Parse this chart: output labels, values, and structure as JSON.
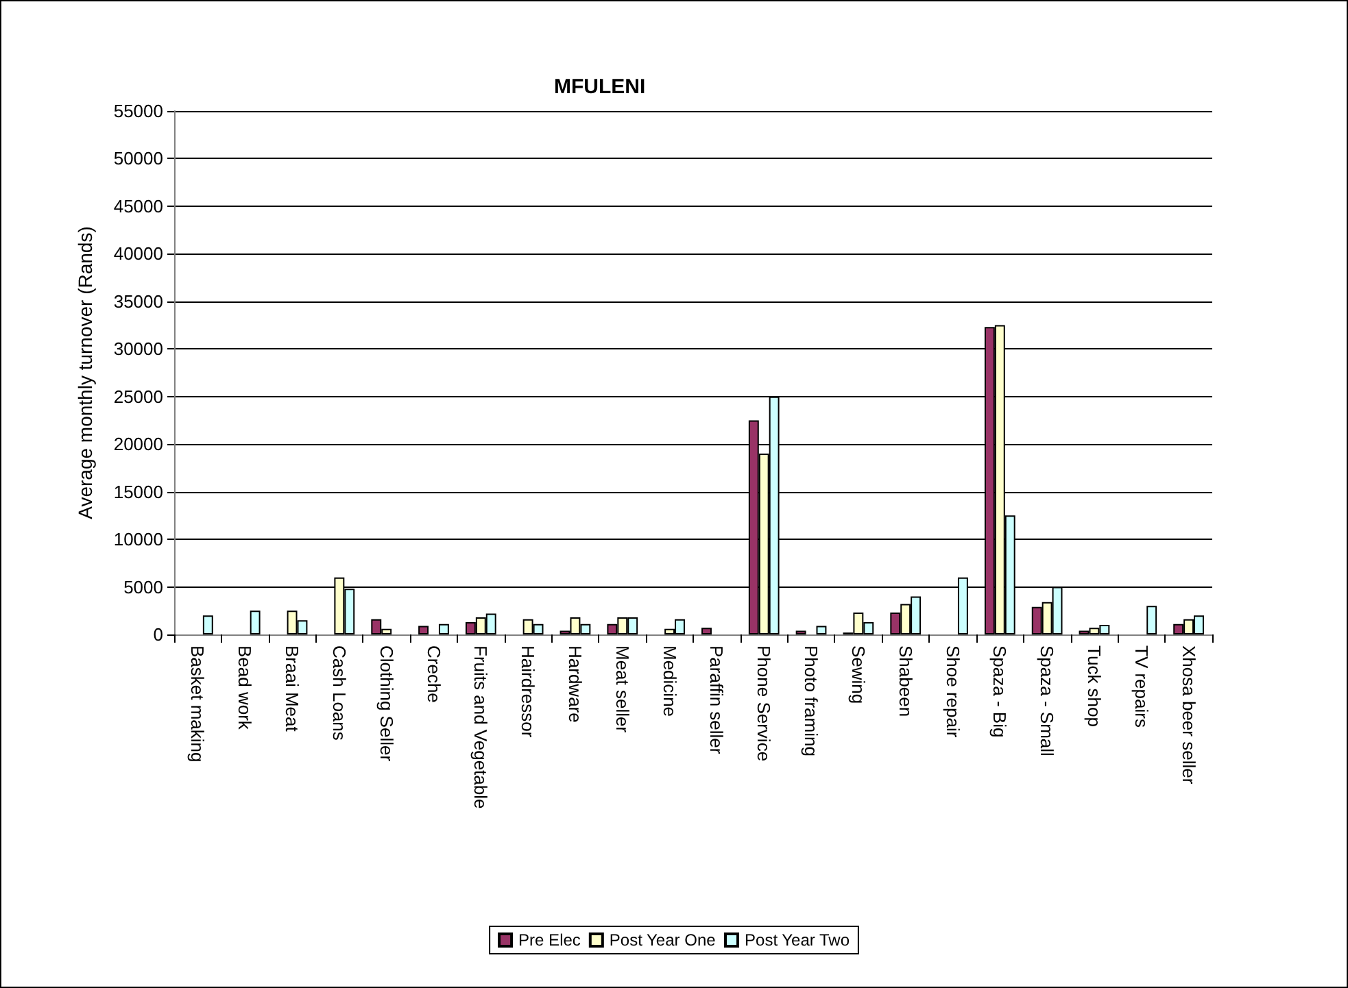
{
  "chart_data": {
    "type": "bar",
    "title": "MFULENI",
    "ylabel": "Average monthly turnover (Rands)",
    "categories": [
      "Basket making",
      "Bead work",
      "Braai Meat",
      "Cash Loans",
      "Clothing Seller",
      "Creche",
      "Fruits and Vegetable",
      "Hairdressor",
      "Hardware",
      "Meat seller",
      "Medicine",
      "Paraffin seller",
      "Phone Service",
      "Photo framing",
      "Sewing",
      "Shabeen",
      "Shoe repair",
      "Spaza - Big",
      "Spaza - Small",
      "Tuck shop",
      "TV repairs",
      "Xhosa beer seller"
    ],
    "series": [
      {
        "name": "Pre Elec",
        "color": "#993366",
        "values": [
          null,
          null,
          null,
          null,
          1600,
          900,
          1300,
          null,
          400,
          1100,
          null,
          700,
          22500,
          400,
          200,
          2300,
          null,
          32300,
          2900,
          400,
          null,
          1100
        ]
      },
      {
        "name": "Post Year One",
        "color": "#ffffcc",
        "values": [
          null,
          null,
          2500,
          6000,
          600,
          null,
          1800,
          1600,
          1800,
          1800,
          600,
          null,
          19000,
          null,
          2300,
          3200,
          null,
          32500,
          3400,
          700,
          null,
          1600
        ]
      },
      {
        "name": "Post Year Two",
        "color": "#ccffff",
        "values": [
          2000,
          2500,
          1500,
          4800,
          null,
          1100,
          2200,
          1100,
          1100,
          1800,
          1600,
          null,
          25000,
          900,
          1300,
          4000,
          6000,
          12500,
          5000,
          1000,
          3000,
          2000
        ]
      }
    ],
    "ylim": [
      0,
      55000
    ],
    "yticks": [
      0,
      5000,
      10000,
      15000,
      20000,
      25000,
      30000,
      35000,
      40000,
      45000,
      50000,
      55000
    ],
    "grid": "y",
    "legend": "bottom"
  }
}
